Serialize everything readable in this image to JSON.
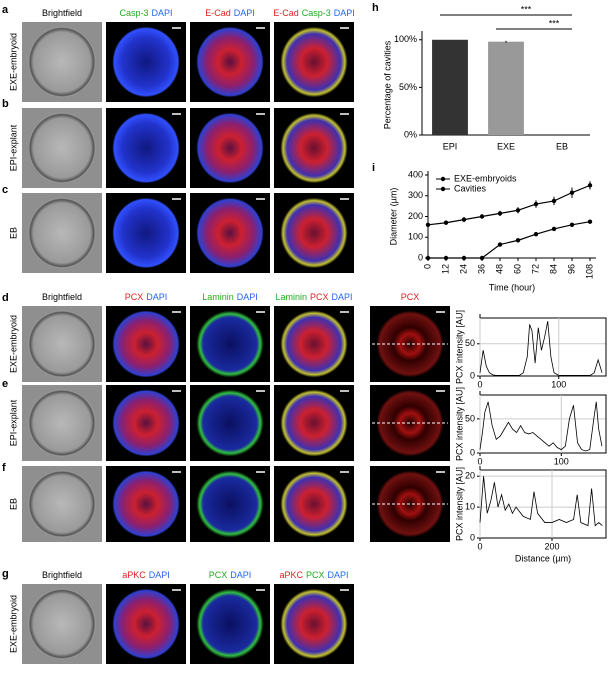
{
  "figure": {
    "panel_letters": [
      "a",
      "b",
      "c",
      "d",
      "e",
      "f",
      "g",
      "h",
      "i"
    ],
    "top_headers": [
      [
        {
          "text": "Brightfield",
          "color": "#000000"
        }
      ],
      [
        {
          "text": "Casp-3",
          "color": "#22aa22"
        },
        {
          "text": "DAPI",
          "color": "#2266ee"
        }
      ],
      [
        {
          "text": "E-Cad",
          "color": "#dd2222"
        },
        {
          "text": "DAPI",
          "color": "#2266ee"
        }
      ],
      [
        {
          "text": "E-Cad",
          "color": "#dd2222"
        },
        {
          "text": "Casp-3",
          "color": "#22aa22"
        },
        {
          "text": "DAPI",
          "color": "#2266ee"
        }
      ]
    ],
    "top_rows": [
      "EXE-embryoid",
      "EPI-explant",
      "EB"
    ],
    "mid_headers": [
      [
        {
          "text": "Brightfield",
          "color": "#000000"
        }
      ],
      [
        {
          "text": "PCX",
          "color": "#dd2222"
        },
        {
          "text": "DAPI",
          "color": "#2266ee"
        }
      ],
      [
        {
          "text": "Laminin",
          "color": "#22aa22"
        },
        {
          "text": "DAPI",
          "color": "#2266ee"
        }
      ],
      [
        {
          "text": "Laminin",
          "color": "#22aa22"
        },
        {
          "text": "PCX",
          "color": "#dd2222"
        },
        {
          "text": "DAPI",
          "color": "#2266ee"
        }
      ],
      [
        {
          "text": "PCX",
          "color": "#dd2222"
        }
      ]
    ],
    "mid_rows": [
      "EXE-embryoid",
      "EPI-explant",
      "EB"
    ],
    "bottom_headers": [
      [
        {
          "text": "Brightfield",
          "color": "#000000"
        }
      ],
      [
        {
          "text": "aPKC",
          "color": "#dd2222"
        },
        {
          "text": "DAPI",
          "color": "#2266ee"
        }
      ],
      [
        {
          "text": "PCX",
          "color": "#22aa22"
        },
        {
          "text": "DAPI",
          "color": "#2266ee"
        }
      ],
      [
        {
          "text": "aPKC",
          "color": "#dd2222"
        },
        {
          "text": "PCX",
          "color": "#22aa22"
        },
        {
          "text": "DAPI",
          "color": "#2266ee"
        }
      ]
    ],
    "bottom_rows": [
      "EXE-embryoid"
    ]
  },
  "chart_data": [
    {
      "type": "bar",
      "categories": [
        "EPI",
        "EXE",
        "EB"
      ],
      "values": [
        100,
        98,
        0
      ],
      "errors": [
        0,
        1,
        0
      ],
      "colors": [
        "#333333",
        "#999999",
        "#999999"
      ],
      "ylabel": "Percentage of cavities",
      "ylim": [
        0,
        105
      ],
      "yticks": [
        {
          "value": 0,
          "label": "0%"
        },
        {
          "value": 50,
          "label": "50%"
        },
        {
          "value": 100,
          "label": "100%"
        }
      ],
      "annotations": [
        "***",
        "***"
      ]
    },
    {
      "type": "line",
      "xlabel": "Time (hour)",
      "ylabel": "Diameter (µm)",
      "x": [
        0,
        12,
        24,
        36,
        48,
        60,
        72,
        84,
        96,
        108
      ],
      "xlim": [
        0,
        112
      ],
      "xticks": [
        0,
        12,
        24,
        36,
        48,
        60,
        72,
        84,
        96,
        108
      ],
      "ylim": [
        0,
        400
      ],
      "yticks": [
        0,
        100,
        200,
        300,
        400
      ],
      "grid": false,
      "legend": "upper left",
      "series": [
        {
          "name": "EXE-embryoids",
          "color": "#000000",
          "values": [
            160,
            170,
            185,
            200,
            215,
            230,
            260,
            275,
            315,
            350
          ],
          "errors": [
            8,
            10,
            12,
            10,
            12,
            15,
            18,
            20,
            25,
            20
          ]
        },
        {
          "name": "Cavities",
          "color": "#000000",
          "values": [
            0,
            0,
            0,
            0,
            65,
            85,
            115,
            140,
            160,
            175
          ],
          "errors": [
            0,
            0,
            0,
            0,
            8,
            8,
            10,
            10,
            10,
            8
          ]
        }
      ]
    },
    {
      "type": "line",
      "ylabel": "PCX intensity [AU]",
      "grid": true,
      "x": [
        0,
        4,
        8,
        12,
        16,
        20,
        30,
        40,
        50,
        55,
        60,
        63,
        66,
        70,
        74,
        78,
        82,
        86,
        90,
        94,
        100,
        110,
        120,
        130,
        140,
        145,
        150,
        155
      ],
      "xlim": [
        0,
        160
      ],
      "xticks": [
        0,
        100
      ],
      "ylim": [
        0,
        90
      ],
      "yticks": [
        0,
        50
      ],
      "series": [
        {
          "color": "#000000",
          "values": [
            5,
            40,
            15,
            5,
            2,
            1,
            1,
            1,
            1,
            5,
            30,
            80,
            70,
            20,
            75,
            40,
            60,
            85,
            30,
            5,
            1,
            1,
            1,
            1,
            1,
            5,
            25,
            5
          ]
        }
      ]
    },
    {
      "type": "line",
      "ylabel": "PCX intensity [AU]",
      "grid": true,
      "x": [
        0,
        3,
        6,
        10,
        15,
        20,
        25,
        30,
        35,
        40,
        45,
        50,
        55,
        60,
        65,
        70,
        75,
        80,
        85,
        90,
        95,
        100,
        105,
        110,
        115,
        120,
        125,
        130,
        135,
        140,
        143,
        146,
        150
      ],
      "xlim": [
        0,
        155
      ],
      "xticks": [
        0,
        100
      ],
      "ylim": [
        0,
        85
      ],
      "yticks": [
        0,
        50
      ],
      "series": [
        {
          "color": "#000000",
          "values": [
            5,
            30,
            60,
            75,
            40,
            20,
            25,
            35,
            45,
            35,
            30,
            40,
            30,
            28,
            30,
            25,
            20,
            15,
            10,
            15,
            8,
            5,
            10,
            50,
            70,
            15,
            5,
            3,
            5,
            50,
            75,
            35,
            10
          ]
        }
      ]
    },
    {
      "type": "line",
      "xlabel": "Distance (µm)",
      "ylabel": "PCX intensity [AU]",
      "grid": true,
      "x": [
        0,
        10,
        20,
        30,
        40,
        50,
        60,
        70,
        80,
        90,
        100,
        120,
        140,
        150,
        160,
        180,
        200,
        220,
        240,
        260,
        270,
        280,
        300,
        310,
        320,
        330,
        340
      ],
      "xlim": [
        0,
        350
      ],
      "xticks": [
        0,
        200
      ],
      "ylim": [
        0,
        22
      ],
      "yticks": [
        0,
        10,
        20
      ],
      "series": [
        {
          "color": "#000000",
          "values": [
            5,
            20,
            8,
            12,
            18,
            10,
            14,
            9,
            11,
            8,
            10,
            7,
            6,
            15,
            8,
            5,
            5,
            6,
            5,
            6,
            14,
            5,
            4,
            16,
            4,
            5,
            4
          ]
        }
      ]
    }
  ]
}
